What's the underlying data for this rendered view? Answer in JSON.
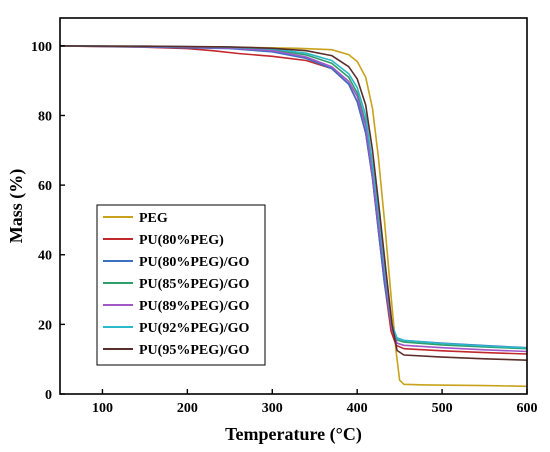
{
  "chart_data": {
    "type": "line",
    "xlabel": "Temperature (°C)",
    "ylabel": "Mass (%)",
    "xlim": [
      50,
      600
    ],
    "ylim": [
      0,
      108
    ],
    "x_ticks": [
      100,
      200,
      300,
      400,
      500,
      600
    ],
    "y_ticks": [
      0,
      20,
      40,
      60,
      80,
      100
    ],
    "grid": false,
    "legend_position": "lower-left",
    "series": [
      {
        "name": "PEG",
        "color": "#c8a21a",
        "points": [
          [
            50,
            100
          ],
          [
            150,
            99.8
          ],
          [
            250,
            99.6
          ],
          [
            330,
            99.3
          ],
          [
            370,
            98.9
          ],
          [
            390,
            97.5
          ],
          [
            400,
            95.5
          ],
          [
            410,
            91
          ],
          [
            418,
            82
          ],
          [
            425,
            68
          ],
          [
            432,
            50
          ],
          [
            440,
            28
          ],
          [
            446,
            12
          ],
          [
            450,
            4
          ],
          [
            455,
            2.8
          ],
          [
            480,
            2.6
          ],
          [
            550,
            2.4
          ],
          [
            600,
            2.2
          ]
        ]
      },
      {
        "name": "PU(80%PEG)",
        "color": "#c0282c",
        "points": [
          [
            50,
            100
          ],
          [
            150,
            99.6
          ],
          [
            200,
            99.2
          ],
          [
            230,
            98.6
          ],
          [
            260,
            97.8
          ],
          [
            300,
            97
          ],
          [
            340,
            95.8
          ],
          [
            370,
            93.5
          ],
          [
            390,
            89
          ],
          [
            400,
            84
          ],
          [
            410,
            75
          ],
          [
            418,
            62
          ],
          [
            425,
            47
          ],
          [
            432,
            32
          ],
          [
            440,
            18
          ],
          [
            446,
            14
          ],
          [
            455,
            13
          ],
          [
            500,
            12.4
          ],
          [
            550,
            11.9
          ],
          [
            600,
            11.5
          ]
        ]
      },
      {
        "name": "PU(80%PEG)/GO",
        "color": "#3a6fc4",
        "points": [
          [
            50,
            100
          ],
          [
            150,
            99.7
          ],
          [
            250,
            99.2
          ],
          [
            300,
            98.3
          ],
          [
            340,
            96.4
          ],
          [
            370,
            93.5
          ],
          [
            390,
            89
          ],
          [
            400,
            84
          ],
          [
            410,
            75
          ],
          [
            418,
            62
          ],
          [
            425,
            47
          ],
          [
            432,
            32
          ],
          [
            440,
            20
          ],
          [
            446,
            16.2
          ],
          [
            455,
            15.4
          ],
          [
            500,
            14.6
          ],
          [
            550,
            13.9
          ],
          [
            600,
            13.3
          ]
        ]
      },
      {
        "name": "PU(85%PEG)/GO",
        "color": "#2e9e6a",
        "points": [
          [
            50,
            100
          ],
          [
            150,
            99.8
          ],
          [
            250,
            99.5
          ],
          [
            300,
            98.9
          ],
          [
            340,
            97.4
          ],
          [
            370,
            95
          ],
          [
            390,
            91
          ],
          [
            400,
            86.5
          ],
          [
            410,
            78
          ],
          [
            418,
            64
          ],
          [
            426,
            48
          ],
          [
            434,
            32
          ],
          [
            441,
            19.5
          ],
          [
            447,
            15.5
          ],
          [
            455,
            14.9
          ],
          [
            500,
            14.1
          ],
          [
            550,
            13.5
          ],
          [
            600,
            13
          ]
        ]
      },
      {
        "name": "PU(89%PEG)/GO",
        "color": "#a257c7",
        "points": [
          [
            50,
            100
          ],
          [
            150,
            99.8
          ],
          [
            250,
            99.4
          ],
          [
            300,
            98.6
          ],
          [
            340,
            96.8
          ],
          [
            370,
            94
          ],
          [
            390,
            89.8
          ],
          [
            400,
            85.5
          ],
          [
            410,
            77
          ],
          [
            418,
            63
          ],
          [
            426,
            47
          ],
          [
            434,
            31
          ],
          [
            441,
            18.5
          ],
          [
            447,
            14.6
          ],
          [
            455,
            14
          ],
          [
            500,
            13.3
          ],
          [
            550,
            12.7
          ],
          [
            600,
            12.2
          ]
        ]
      },
      {
        "name": "PU(92%PEG)/GO",
        "color": "#2bb8c8",
        "points": [
          [
            50,
            100
          ],
          [
            150,
            99.9
          ],
          [
            250,
            99.6
          ],
          [
            300,
            99.1
          ],
          [
            340,
            97.9
          ],
          [
            370,
            95.8
          ],
          [
            390,
            92
          ],
          [
            400,
            88
          ],
          [
            410,
            80
          ],
          [
            418,
            66
          ],
          [
            426,
            50
          ],
          [
            434,
            33
          ],
          [
            441,
            20
          ],
          [
            447,
            16
          ],
          [
            455,
            15.4
          ],
          [
            500,
            14.5
          ],
          [
            550,
            13.8
          ],
          [
            600,
            13.2
          ]
        ]
      },
      {
        "name": "PU(95%PEG)/GO",
        "color": "#5a2e2a",
        "points": [
          [
            50,
            100
          ],
          [
            150,
            99.9
          ],
          [
            250,
            99.7
          ],
          [
            300,
            99.3
          ],
          [
            340,
            98.6
          ],
          [
            370,
            97.2
          ],
          [
            390,
            94
          ],
          [
            400,
            90.5
          ],
          [
            410,
            83
          ],
          [
            418,
            70
          ],
          [
            426,
            53
          ],
          [
            434,
            35
          ],
          [
            441,
            20
          ],
          [
            447,
            12.5
          ],
          [
            455,
            11.2
          ],
          [
            500,
            10.6
          ],
          [
            550,
            10.1
          ],
          [
            600,
            9.7
          ]
        ]
      }
    ]
  }
}
